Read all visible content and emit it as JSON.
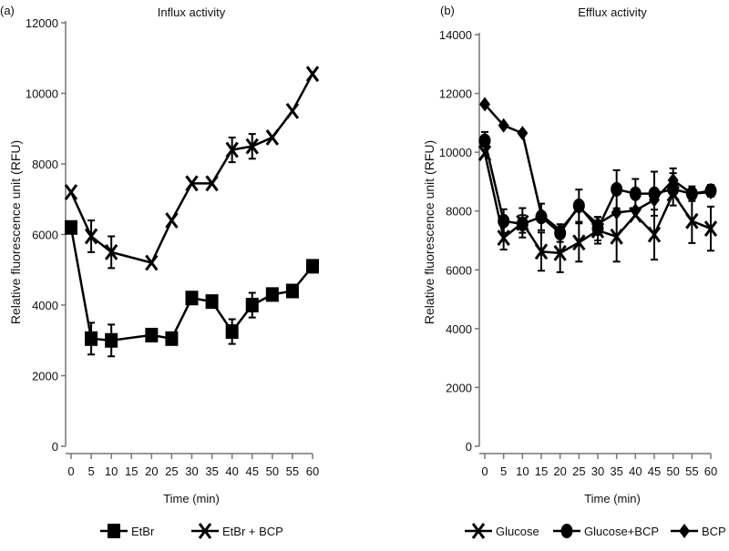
{
  "chart_data": [
    {
      "type": "line",
      "panel_label": "(a)",
      "title": "Influx activity",
      "xlabel": "Time (min)",
      "ylabel": "Relative fluorescence unit (RFU)",
      "xlim": [
        0,
        60
      ],
      "ylim": [
        0,
        12000
      ],
      "x_ticks": [
        0,
        5,
        10,
        15,
        20,
        25,
        30,
        35,
        40,
        45,
        50,
        55,
        60
      ],
      "y_ticks": [
        0,
        2000,
        4000,
        6000,
        8000,
        10000,
        12000
      ],
      "grid": false,
      "legend_position": "bottom",
      "x": [
        0,
        5,
        10,
        15,
        20,
        25,
        30,
        35,
        40,
        45,
        50,
        55,
        60
      ],
      "series": [
        {
          "name": "EtBr",
          "marker": "square",
          "values": [
            6200,
            3050,
            3000,
            3150,
            3050,
            4200,
            4100,
            3250,
            4000,
            4300,
            4400,
            5100
          ],
          "x": [
            0,
            5,
            10,
            20,
            25,
            30,
            35,
            40,
            45,
            50,
            55,
            60
          ],
          "errors": [
            0,
            450,
            450,
            0,
            0,
            0,
            0,
            350,
            350,
            0,
            0,
            0
          ]
        },
        {
          "name": "EtBr + BCP",
          "marker": "x",
          "values": [
            7200,
            5950,
            5500,
            5200,
            6400,
            7450,
            7450,
            8400,
            8500,
            8750,
            9500,
            10550
          ],
          "x": [
            0,
            5,
            10,
            20,
            25,
            30,
            35,
            40,
            45,
            50,
            55,
            60
          ],
          "errors": [
            0,
            450,
            450,
            0,
            0,
            0,
            0,
            350,
            350,
            0,
            0,
            0
          ]
        }
      ]
    },
    {
      "type": "line",
      "panel_label": "(b)",
      "title": "Efflux activity",
      "xlabel": "Time (min)",
      "ylabel": "Relative fluorescence unit (RFU)",
      "xlim": [
        0,
        60
      ],
      "ylim": [
        0,
        14000
      ],
      "x_ticks": [
        0,
        5,
        10,
        15,
        20,
        25,
        30,
        35,
        40,
        45,
        50,
        55,
        60
      ],
      "y_ticks": [
        0,
        2000,
        4000,
        6000,
        8000,
        10000,
        12000,
        14000
      ],
      "grid": false,
      "legend_position": "bottom",
      "x": [
        0,
        5,
        10,
        15,
        20,
        25,
        30,
        35,
        40,
        45,
        50,
        55,
        60
      ],
      "series": [
        {
          "name": "Glucose",
          "marker": "x",
          "values": [
            9970,
            7090,
            7600,
            6620,
            6570,
            6930,
            7340,
            7130,
            7870,
            7200,
            8590,
            7660,
            7400
          ],
          "errors": [
            0,
            400,
            500,
            650,
            650,
            650,
            450,
            850,
            0,
            850,
            0,
            750,
            750
          ]
        },
        {
          "name": "Glucose+BCP",
          "marker": "circle",
          "values": [
            10390,
            7660,
            7560,
            7800,
            7250,
            8180,
            7400,
            8740,
            8590,
            8590,
            8740,
            8590,
            8690
          ],
          "errors": [
            300,
            400,
            300,
            450,
            300,
            550,
            400,
            650,
            500,
            750,
            550,
            250,
            200
          ]
        },
        {
          "name": "BCP",
          "marker": "diamond",
          "values": [
            11630,
            10910,
            10650,
            7870,
            7350,
            8120,
            7560,
            7950,
            8020,
            8380,
            9050,
            8590,
            8640
          ],
          "errors": [
            0,
            0,
            0,
            0,
            0,
            0,
            0,
            0,
            0,
            0,
            400,
            0,
            0
          ]
        }
      ]
    }
  ]
}
